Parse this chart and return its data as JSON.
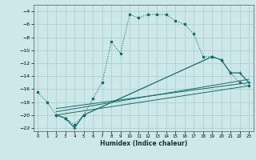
{
  "xlabel": "Humidex (Indice chaleur)",
  "bg_color": "#cce8e8",
  "grid_color": "#aacccc",
  "line_color": "#1a6b6b",
  "xlim": [
    -0.5,
    23.5
  ],
  "ylim": [
    -22.5,
    -3.0
  ],
  "yticks": [
    -4,
    -6,
    -8,
    -10,
    -12,
    -14,
    -16,
    -18,
    -20,
    -22
  ],
  "xticks": [
    0,
    1,
    2,
    3,
    4,
    5,
    6,
    7,
    8,
    9,
    10,
    11,
    12,
    13,
    14,
    15,
    16,
    17,
    18,
    19,
    20,
    21,
    22,
    23
  ],
  "dotted_x": [
    0,
    1,
    2,
    3,
    4,
    5,
    6,
    7,
    8,
    9,
    10,
    11,
    12,
    13,
    14,
    15,
    16,
    17,
    18,
    19,
    20,
    21,
    22,
    23
  ],
  "dotted_y": [
    -16.5,
    -18.0,
    -20.0,
    -20.5,
    -21.5,
    -20.0,
    -17.5,
    -15.0,
    -8.7,
    -10.5,
    -4.5,
    -5.0,
    -4.5,
    -4.5,
    -4.5,
    -5.5,
    -6.0,
    -7.5,
    -11.0,
    -11.0,
    -11.5,
    -13.5,
    -15.0,
    -15.5
  ],
  "solid_x": [
    2,
    3,
    4,
    5,
    19,
    20,
    21,
    22,
    23
  ],
  "solid_y": [
    -20.0,
    -20.5,
    -22.0,
    -20.0,
    -11.0,
    -11.5,
    -13.5,
    -13.5,
    -15.0
  ],
  "line1_x": [
    2,
    23
  ],
  "line1_y": [
    -20.0,
    -15.5
  ],
  "line2_x": [
    2,
    23
  ],
  "line2_y": [
    -19.5,
    -14.5
  ],
  "line3_x": [
    2,
    23
  ],
  "line3_y": [
    -19.0,
    -15.0
  ]
}
